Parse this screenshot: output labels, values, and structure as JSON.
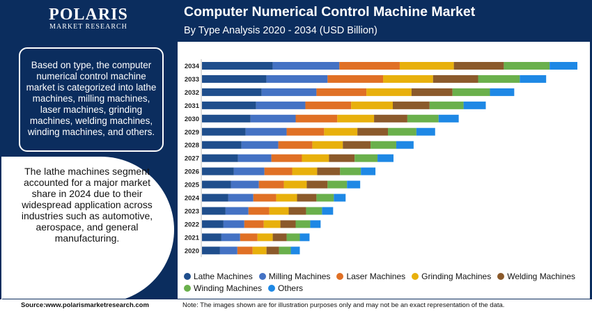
{
  "logo": {
    "main": "POLARIS",
    "sub": "MARKET RESEARCH"
  },
  "header": {
    "title": "Computer Numerical Control Machine Market",
    "subtitle": "By Type Analysis 2020 - 2034 (USD Billion)"
  },
  "left_panel": {
    "box_text": "Based on type, the computer numerical control machine market is categorized into lathe machines, milling machines, laser machines, grinding machines, welding machines, winding machines, and others.",
    "circle_text": "The lathe machines segment accounted for a major market share in 2024 due to their widespread application across industries such as automotive, aerospace, and general manufacturing."
  },
  "footer": {
    "source": "Source:www.polarismarketresearch.com",
    "note": "Note: The images shown are for illustration purposes only and may not be an exact representation of the data."
  },
  "chart_data": {
    "type": "bar",
    "orientation": "horizontal",
    "stacked": true,
    "categories": [
      "2034",
      "2033",
      "2032",
      "2031",
      "2030",
      "2029",
      "2028",
      "2027",
      "2026",
      "2025",
      "2024",
      "2023",
      "2022",
      "2021",
      "2020"
    ],
    "series": [
      {
        "name": "Lathe Machines",
        "color": "#1f4e8c",
        "values": [
          10.2,
          9.3,
          8.6,
          7.8,
          7.0,
          6.3,
          5.7,
          5.2,
          4.6,
          4.2,
          3.8,
          3.4,
          3.1,
          2.8,
          2.6
        ]
      },
      {
        "name": "Milling Machines",
        "color": "#4472c4",
        "values": [
          9.6,
          8.8,
          7.9,
          7.1,
          6.5,
          5.9,
          5.3,
          4.8,
          4.4,
          4.0,
          3.6,
          3.3,
          3.0,
          2.7,
          2.5
        ]
      },
      {
        "name": "Laser Machines",
        "color": "#e07025",
        "values": [
          8.7,
          8.0,
          7.2,
          6.6,
          6.0,
          5.4,
          4.9,
          4.4,
          4.0,
          3.6,
          3.3,
          3.0,
          2.8,
          2.5,
          2.2
        ]
      },
      {
        "name": "Grinding Machines",
        "color": "#e8b00c",
        "values": [
          7.8,
          7.2,
          6.5,
          6.0,
          5.3,
          4.8,
          4.4,
          3.9,
          3.6,
          3.3,
          3.0,
          2.8,
          2.4,
          2.2,
          2.0
        ]
      },
      {
        "name": "Welding Machines",
        "color": "#8b5a2b",
        "values": [
          7.2,
          6.5,
          5.9,
          5.3,
          4.8,
          4.4,
          4.0,
          3.7,
          3.3,
          3.0,
          2.8,
          2.5,
          2.2,
          2.0,
          1.8
        ]
      },
      {
        "name": "Winding Machines",
        "color": "#6ab04c",
        "values": [
          6.6,
          6.0,
          5.4,
          4.9,
          4.5,
          4.1,
          3.7,
          3.3,
          3.0,
          2.8,
          2.5,
          2.3,
          2.1,
          1.9,
          1.7
        ]
      },
      {
        "name": "Others",
        "color": "#1e88e5",
        "values": [
          4.0,
          3.8,
          3.5,
          3.2,
          2.9,
          2.7,
          2.5,
          2.3,
          2.1,
          1.9,
          1.7,
          1.6,
          1.5,
          1.4,
          1.3
        ]
      }
    ],
    "title": "Computer Numerical Control Machine Market",
    "xlabel": "",
    "ylabel": "",
    "grid": false,
    "legend": "bottom"
  }
}
